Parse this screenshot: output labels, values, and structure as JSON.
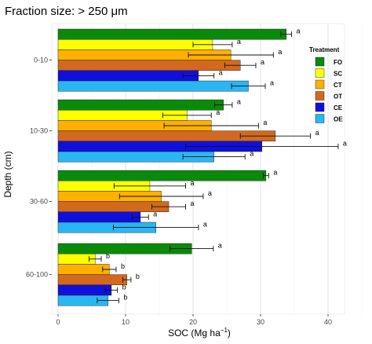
{
  "chart_data": {
    "type": "bar",
    "orientation": "horizontal",
    "title": "Fraction size: > 250 μm",
    "xlabel": "SOC (Mg ha",
    "xlabel_sup": "−1",
    "xlabel_tail": ")",
    "ylabel": "Depth (cm)",
    "xlim": [
      0,
      45
    ],
    "xticks": [
      0,
      10,
      20,
      30,
      40
    ],
    "grid": true,
    "legend_title": "Treatment",
    "legend_position": "right, upper",
    "groups": [
      "0-10",
      "10-30",
      "30-60",
      "60-100"
    ],
    "series": [
      {
        "name": "FO",
        "color": "#0a8a0a",
        "values": [
          33.8,
          24.5,
          30.8,
          19.8
        ],
        "errors": [
          0.8,
          1.3,
          0.4,
          3.2
        ],
        "letters": [
          "a",
          "a",
          "a",
          "a"
        ]
      },
      {
        "name": "SC",
        "color": "#ffff00",
        "values": [
          22.9,
          19.1,
          13.6,
          5.5
        ],
        "errors": [
          2.9,
          3.6,
          5.3,
          0.9
        ],
        "letters": [
          "a",
          "a",
          "a",
          "b"
        ]
      },
      {
        "name": "CT",
        "color": "#ffb000",
        "values": [
          25.6,
          22.7,
          15.3,
          7.6
        ],
        "errors": [
          6.3,
          7.0,
          6.2,
          1.0
        ],
        "letters": [
          "a",
          "a",
          "a",
          "b"
        ]
      },
      {
        "name": "OT",
        "color": "#d2691e",
        "values": [
          27.0,
          32.2,
          16.4,
          10.2
        ],
        "errors": [
          2.3,
          5.2,
          2.5,
          0.6
        ],
        "letters": [
          "a",
          "a",
          "a",
          "b"
        ]
      },
      {
        "name": "CE",
        "color": "#1010dd",
        "values": [
          20.8,
          30.2,
          12.2,
          7.9
        ],
        "errors": [
          2.3,
          11.3,
          1.2,
          0.9
        ],
        "letters": [
          "a",
          "a",
          "a",
          "b"
        ]
      },
      {
        "name": "OE",
        "color": "#29b6f2",
        "values": [
          28.2,
          23.1,
          14.5,
          7.4
        ],
        "errors": [
          2.5,
          4.6,
          6.3,
          1.6
        ],
        "letters": [
          "a",
          "a",
          "a",
          "b"
        ]
      }
    ]
  }
}
